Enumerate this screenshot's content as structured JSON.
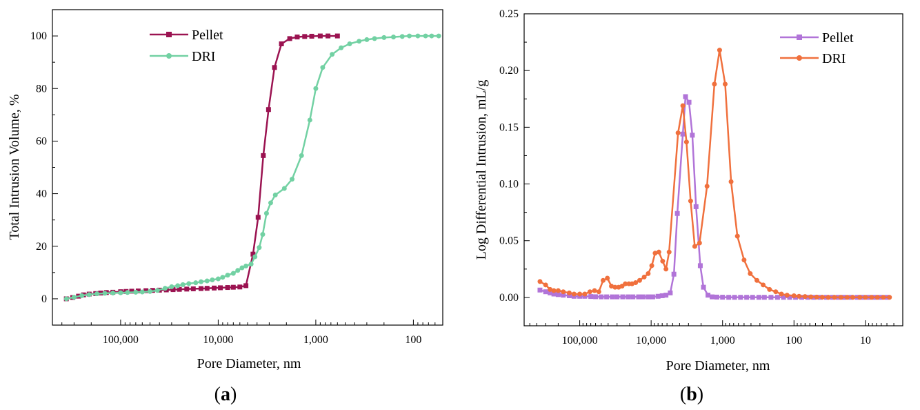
{
  "chart_data": [
    {
      "type": "line",
      "panel_label": "a",
      "xlabel": "Pore Diameter, nm",
      "ylabel": "Total Intrusion Volume, %",
      "x_scale": "log",
      "x_reversed": true,
      "xlim": [
        500000,
        50
      ],
      "ylim": [
        -10,
        110
      ],
      "x_ticks": [
        {
          "value": 100000,
          "label": "100,000"
        },
        {
          "value": 10000,
          "label": "10,000"
        },
        {
          "value": 1000,
          "label": "1,000"
        },
        {
          "value": 100,
          "label": "100"
        }
      ],
      "y_ticks": [
        {
          "value": 0,
          "label": "0"
        },
        {
          "value": 20,
          "label": "20"
        },
        {
          "value": 40,
          "label": "40"
        },
        {
          "value": 60,
          "label": "60"
        },
        {
          "value": 80,
          "label": "80"
        },
        {
          "value": 100,
          "label": "100"
        }
      ],
      "legend_position": "top-center",
      "series": [
        {
          "name": "Pellet",
          "color": "#9b1351",
          "marker": "square",
          "points": [
            [
              360000,
              0
            ],
            [
              310000,
              0.5
            ],
            [
              270000,
              1.0
            ],
            [
              240000,
              1.5
            ],
            [
              210000,
              1.8
            ],
            [
              180000,
              2.0
            ],
            [
              160000,
              2.2
            ],
            [
              140000,
              2.4
            ],
            [
              120000,
              2.5
            ],
            [
              100000,
              2.7
            ],
            [
              88000,
              2.8
            ],
            [
              77000,
              2.9
            ],
            [
              66000,
              3.0
            ],
            [
              55000,
              3.1
            ],
            [
              47000,
              3.2
            ],
            [
              40000,
              3.3
            ],
            [
              34000,
              3.4
            ],
            [
              29000,
              3.5
            ],
            [
              25000,
              3.6
            ],
            [
              21000,
              3.7
            ],
            [
              18000,
              3.8
            ],
            [
              15000,
              3.9
            ],
            [
              13000,
              4.0
            ],
            [
              11000,
              4.1
            ],
            [
              9500,
              4.2
            ],
            [
              8000,
              4.3
            ],
            [
              7000,
              4.4
            ],
            [
              6000,
              4.5
            ],
            [
              5200,
              5.0
            ],
            [
              4400,
              17
            ],
            [
              3900,
              31
            ],
            [
              3450,
              54.5
            ],
            [
              3050,
              72
            ],
            [
              2650,
              88
            ],
            [
              2250,
              97
            ],
            [
              1850,
              99
            ],
            [
              1550,
              99.6
            ],
            [
              1300,
              99.8
            ],
            [
              1100,
              99.9
            ],
            [
              900,
              100
            ],
            [
              750,
              100
            ],
            [
              600,
              100
            ]
          ]
        },
        {
          "name": "DRI",
          "color": "#72d1a3",
          "marker": "circle",
          "points": [
            [
              360000,
              0
            ],
            [
              300000,
              0.6
            ],
            [
              250000,
              1.2
            ],
            [
              210000,
              1.6
            ],
            [
              175000,
              1.9
            ],
            [
              145000,
              2.1
            ],
            [
              120000,
              2.2
            ],
            [
              100000,
              2.3
            ],
            [
              85000,
              2.4
            ],
            [
              70000,
              2.5
            ],
            [
              60000,
              2.6
            ],
            [
              50000,
              2.8
            ],
            [
              42000,
              3.2
            ],
            [
              35000,
              4.0
            ],
            [
              30000,
              4.6
            ],
            [
              26000,
              5.0
            ],
            [
              23000,
              5.4
            ],
            [
              20000,
              5.8
            ],
            [
              17000,
              6.1
            ],
            [
              15000,
              6.5
            ],
            [
              13000,
              6.8
            ],
            [
              11500,
              7.2
            ],
            [
              10000,
              7.6
            ],
            [
              9000,
              8.2
            ],
            [
              8000,
              9.0
            ],
            [
              7000,
              9.7
            ],
            [
              6300,
              10.8
            ],
            [
              5700,
              11.8
            ],
            [
              5200,
              12.5
            ],
            [
              4600,
              13.2
            ],
            [
              4200,
              16
            ],
            [
              3800,
              19.5
            ],
            [
              3500,
              24.5
            ],
            [
              3200,
              32.5
            ],
            [
              2900,
              36.5
            ],
            [
              2600,
              39.5
            ],
            [
              2100,
              42
            ],
            [
              1750,
              45.5
            ],
            [
              1400,
              54.5
            ],
            [
              1150,
              68
            ],
            [
              1000,
              80
            ],
            [
              850,
              88
            ],
            [
              680,
              93
            ],
            [
              550,
              95.5
            ],
            [
              450,
              97
            ],
            [
              360,
              98
            ],
            [
              300,
              98.6
            ],
            [
              250,
              99
            ],
            [
              200,
              99.4
            ],
            [
              160,
              99.6
            ],
            [
              130,
              99.8
            ],
            [
              110,
              100
            ],
            [
              90,
              100
            ],
            [
              75,
              100
            ],
            [
              65,
              100
            ],
            [
              55,
              100
            ]
          ]
        }
      ]
    },
    {
      "type": "line",
      "panel_label": "b",
      "xlabel": "Pore Diameter, nm",
      "ylabel": "Log Differential Intrusion, mL/g",
      "x_scale": "log",
      "x_reversed": true,
      "xlim": [
        600000,
        3
      ],
      "ylim": [
        -0.025,
        0.25
      ],
      "x_ticks": [
        {
          "value": 100000,
          "label": "100,000"
        },
        {
          "value": 10000,
          "label": "10,000"
        },
        {
          "value": 1000,
          "label": "1,000"
        },
        {
          "value": 100,
          "label": "100"
        },
        {
          "value": 10,
          "label": "10"
        }
      ],
      "y_ticks": [
        {
          "value": 0,
          "label": "0.00"
        },
        {
          "value": 0.05,
          "label": "0.05"
        },
        {
          "value": 0.1,
          "label": "0.10"
        },
        {
          "value": 0.15,
          "label": "0.15"
        },
        {
          "value": 0.2,
          "label": "0.20"
        },
        {
          "value": 0.25,
          "label": "0.25"
        }
      ],
      "legend_position": "top-right",
      "series": [
        {
          "name": "Pellet",
          "color": "#b174d8",
          "marker": "square",
          "points": [
            [
              360000,
              0.0065
            ],
            [
              300000,
              0.005
            ],
            [
              260000,
              0.004
            ],
            [
              230000,
              0.003
            ],
            [
              200000,
              0.0025
            ],
            [
              170000,
              0.002
            ],
            [
              140000,
              0.0015
            ],
            [
              120000,
              0.001
            ],
            [
              100000,
              0.001
            ],
            [
              85000,
              0.001
            ],
            [
              70000,
              0.0008
            ],
            [
              60000,
              0.0006
            ],
            [
              50000,
              0.0005
            ],
            [
              42000,
              0.0005
            ],
            [
              35000,
              0.0005
            ],
            [
              30000,
              0.0005
            ],
            [
              25000,
              0.0005
            ],
            [
              21000,
              0.0005
            ],
            [
              18000,
              0.0005
            ],
            [
              15000,
              0.0005
            ],
            [
              13000,
              0.0005
            ],
            [
              11000,
              0.0005
            ],
            [
              9500,
              0.0005
            ],
            [
              8000,
              0.001
            ],
            [
              7000,
              0.0015
            ],
            [
              6200,
              0.002
            ],
            [
              5400,
              0.004
            ],
            [
              4800,
              0.0205
            ],
            [
              4300,
              0.074
            ],
            [
              3600,
              0.144
            ],
            [
              3300,
              0.177
            ],
            [
              2950,
              0.172
            ],
            [
              2650,
              0.143
            ],
            [
              2350,
              0.08
            ],
            [
              2050,
              0.028
            ],
            [
              1850,
              0.009
            ],
            [
              1600,
              0.002
            ],
            [
              1400,
              0.0005
            ],
            [
              1200,
              0.0003
            ],
            [
              1000,
              0.0002
            ],
            [
              820,
              0.0001
            ],
            [
              680,
              0.0001
            ],
            [
              560,
              0.0001
            ],
            [
              460,
              0.0001
            ],
            [
              380,
              0.0001
            ],
            [
              310,
              0.0001
            ],
            [
              260,
              0.0001
            ],
            [
              210,
              0.0001
            ],
            [
              170,
              0.0001
            ],
            [
              140,
              0.0001
            ],
            [
              115,
              0.0001
            ],
            [
              95,
              0.0001
            ],
            [
              78,
              0.0001
            ],
            [
              64,
              0.0001
            ],
            [
              53,
              0.0001
            ],
            [
              43,
              0.0001
            ],
            [
              35,
              0.0001
            ],
            [
              29,
              0.0001
            ],
            [
              24,
              0.0001
            ],
            [
              20,
              0.0001
            ],
            [
              16,
              0.0001
            ],
            [
              13,
              0.0001
            ],
            [
              11,
              0.0001
            ],
            [
              9,
              0.0001
            ],
            [
              7.5,
              0.0001
            ],
            [
              6.2,
              0.0001
            ],
            [
              5,
              0.0001
            ]
          ]
        },
        {
          "name": "DRI",
          "color": "#f0703d",
          "marker": "circle",
          "points": [
            [
              360000,
              0.014
            ],
            [
              300000,
              0.011
            ],
            [
              260000,
              0.007
            ],
            [
              230000,
              0.006
            ],
            [
              200000,
              0.006
            ],
            [
              170000,
              0.005
            ],
            [
              140000,
              0.004
            ],
            [
              120000,
              0.003
            ],
            [
              100000,
              0.003
            ],
            [
              85000,
              0.003
            ],
            [
              72000,
              0.005
            ],
            [
              62000,
              0.006
            ],
            [
              54000,
              0.005
            ],
            [
              47000,
              0.015
            ],
            [
              41000,
              0.017
            ],
            [
              36000,
              0.01
            ],
            [
              32000,
              0.009
            ],
            [
              28500,
              0.009
            ],
            [
              25500,
              0.01
            ],
            [
              23000,
              0.012
            ],
            [
              20500,
              0.012
            ],
            [
              18500,
              0.012
            ],
            [
              16500,
              0.013
            ],
            [
              14500,
              0.015
            ],
            [
              12500,
              0.018
            ],
            [
              11000,
              0.021
            ],
            [
              9800,
              0.028
            ],
            [
              8800,
              0.039
            ],
            [
              7800,
              0.04
            ],
            [
              6900,
              0.032
            ],
            [
              6200,
              0.025
            ],
            [
              5600,
              0.04
            ],
            [
              4200,
              0.145
            ],
            [
              3600,
              0.169
            ],
            [
              3200,
              0.137
            ],
            [
              2800,
              0.085
            ],
            [
              2450,
              0.045
            ],
            [
              2100,
              0.048
            ],
            [
              1650,
              0.098
            ],
            [
              1300,
              0.188
            ],
            [
              1100,
              0.218
            ],
            [
              920,
              0.188
            ],
            [
              760,
              0.102
            ],
            [
              620,
              0.054
            ],
            [
              500,
              0.033
            ],
            [
              410,
              0.021
            ],
            [
              330,
              0.015
            ],
            [
              270,
              0.011
            ],
            [
              220,
              0.007
            ],
            [
              180,
              0.005
            ],
            [
              150,
              0.003
            ],
            [
              125,
              0.002
            ],
            [
              100,
              0.0015
            ],
            [
              85,
              0.001
            ],
            [
              70,
              0.0008
            ],
            [
              58,
              0.0005
            ],
            [
              48,
              0.0003
            ],
            [
              40,
              0.0002
            ],
            [
              33,
              0.0001
            ],
            [
              27,
              0.0001
            ],
            [
              22,
              0.0001
            ],
            [
              18,
              0.0001
            ],
            [
              15,
              0.0001
            ],
            [
              12,
              0.0001
            ],
            [
              10,
              0.0001
            ],
            [
              8.2,
              0.0001
            ],
            [
              6.8,
              0.0001
            ],
            [
              5.6,
              0.0001
            ],
            [
              4.6,
              0.0001
            ]
          ]
        }
      ]
    }
  ]
}
